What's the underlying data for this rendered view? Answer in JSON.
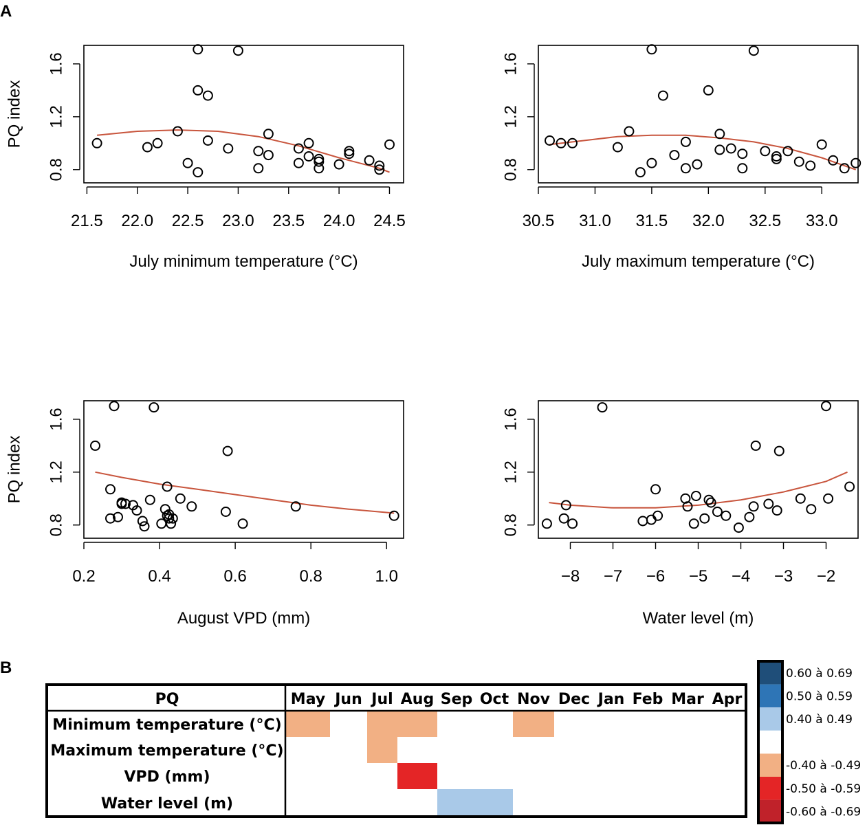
{
  "panel_labels": {
    "a": "A",
    "b": "B"
  },
  "colors": {
    "fit_line": "#c8553d",
    "light_red": "#f2b084",
    "red": "#e42526",
    "light_blue": "#a9c9e8"
  },
  "chart_data": [
    {
      "type": "scatter",
      "xlabel": "July minimum temperature (°C)",
      "ylabel": "PQ index",
      "xticks": [
        21.5,
        22.0,
        22.5,
        23.0,
        23.5,
        24.0,
        24.5
      ],
      "xtick_labels": [
        "21.5",
        "22.0",
        "22.5",
        "23.0",
        "23.5",
        "24.0",
        "24.5"
      ],
      "yticks": [
        0.8,
        1.2,
        1.6
      ],
      "ytick_labels": [
        "0.8",
        "1.2",
        "1.6"
      ],
      "xlim": [
        21.47,
        24.64
      ],
      "ylim": [
        0.7,
        1.74
      ],
      "x": [
        21.6,
        22.1,
        22.2,
        22.4,
        22.5,
        22.6,
        22.6,
        22.6,
        22.7,
        22.7,
        22.9,
        23.0,
        23.2,
        23.2,
        23.3,
        23.3,
        23.6,
        23.6,
        23.7,
        23.7,
        23.8,
        23.8,
        23.8,
        24.0,
        24.1,
        24.1,
        24.3,
        24.4,
        24.4,
        24.5
      ],
      "y": [
        1.0,
        0.97,
        1.0,
        1.09,
        0.85,
        0.78,
        1.4,
        1.71,
        1.36,
        1.02,
        0.96,
        1.7,
        0.81,
        0.94,
        1.07,
        0.91,
        0.85,
        0.96,
        0.9,
        1.0,
        0.88,
        0.86,
        0.81,
        0.84,
        0.94,
        0.92,
        0.87,
        0.83,
        0.8,
        0.99
      ],
      "fit": {
        "x": [
          21.6,
          22.0,
          22.4,
          22.8,
          23.2,
          23.6,
          24.0,
          24.4,
          24.5
        ],
        "y": [
          1.06,
          1.09,
          1.1,
          1.09,
          1.05,
          0.98,
          0.89,
          0.81,
          0.78
        ]
      }
    },
    {
      "type": "scatter",
      "xlabel": "July maximum temperature (°C)",
      "ylabel": "",
      "xticks": [
        30.5,
        31.0,
        31.5,
        32.0,
        32.5,
        33.0
      ],
      "xtick_labels": [
        "30.5",
        "31.0",
        "31.5",
        "32.0",
        "32.5",
        "33.0"
      ],
      "yticks": [
        0.8,
        1.2,
        1.6
      ],
      "ytick_labels": [
        "0.8",
        "1.2",
        "1.6"
      ],
      "xlim": [
        30.5,
        33.32
      ],
      "ylim": [
        0.7,
        1.74
      ],
      "x": [
        30.6,
        30.7,
        30.8,
        31.2,
        31.3,
        31.4,
        31.5,
        31.5,
        31.6,
        31.7,
        31.8,
        31.8,
        31.9,
        32.0,
        32.1,
        32.1,
        32.2,
        32.3,
        32.3,
        32.4,
        32.5,
        32.6,
        32.6,
        32.7,
        32.8,
        32.9,
        33.0,
        33.1,
        33.2,
        33.3
      ],
      "y": [
        1.02,
        1.0,
        1.0,
        0.97,
        1.09,
        0.78,
        1.71,
        0.85,
        1.36,
        0.91,
        1.01,
        0.81,
        0.84,
        1.4,
        1.07,
        0.95,
        0.96,
        0.92,
        0.81,
        1.7,
        0.94,
        0.9,
        0.88,
        0.94,
        0.86,
        0.83,
        0.99,
        0.87,
        0.81,
        0.85
      ],
      "fit": {
        "x": [
          30.6,
          30.9,
          31.2,
          31.5,
          31.8,
          32.1,
          32.4,
          32.7,
          33.0,
          33.3
        ],
        "y": [
          0.99,
          1.02,
          1.05,
          1.06,
          1.06,
          1.04,
          1.01,
          0.96,
          0.89,
          0.8
        ]
      }
    },
    {
      "type": "scatter",
      "xlabel": "August VPD (mm)",
      "ylabel": "PQ index",
      "xticks": [
        0.2,
        0.4,
        0.6,
        0.8,
        1.0
      ],
      "xtick_labels": [
        "0.2",
        "0.4",
        "0.6",
        "0.8",
        "1.0"
      ],
      "yticks": [
        0.8,
        1.2,
        1.6
      ],
      "ytick_labels": [
        "0.8",
        "1.2",
        "1.6"
      ],
      "xlim": [
        0.2,
        1.045
      ],
      "ylim": [
        0.7,
        1.74
      ],
      "x": [
        0.23,
        0.27,
        0.27,
        0.28,
        0.29,
        0.3,
        0.3,
        0.31,
        0.33,
        0.34,
        0.355,
        0.36,
        0.375,
        0.385,
        0.405,
        0.415,
        0.42,
        0.42,
        0.425,
        0.425,
        0.43,
        0.435,
        0.455,
        0.485,
        0.575,
        0.58,
        0.62,
        0.76,
        1.02
      ],
      "y": [
        1.4,
        0.85,
        1.07,
        1.7,
        0.86,
        0.96,
        0.97,
        0.96,
        0.95,
        0.91,
        0.83,
        0.79,
        0.99,
        1.69,
        0.81,
        0.92,
        0.87,
        1.09,
        0.85,
        0.88,
        0.81,
        0.85,
        1.0,
        0.94,
        0.9,
        1.36,
        0.81,
        0.94,
        0.87
      ],
      "fit": {
        "x": [
          0.23,
          0.3,
          0.4,
          0.5,
          0.6,
          0.7,
          0.8,
          0.9,
          1.02
        ],
        "y": [
          1.2,
          1.16,
          1.11,
          1.07,
          1.03,
          0.99,
          0.95,
          0.92,
          0.89
        ]
      }
    },
    {
      "type": "scatter",
      "xlabel": "Water level (m)",
      "ylabel": "",
      "xticks": [
        -8,
        -7,
        -6,
        -5,
        -4,
        -3,
        -2
      ],
      "xtick_labels": [
        "−8",
        "−7",
        "−6",
        "−5",
        "−4",
        "−3",
        "−2"
      ],
      "yticks": [
        0.8,
        1.2,
        1.6
      ],
      "ytick_labels": [
        "0.8",
        "1.2",
        "1.6"
      ],
      "xlim": [
        -8.75,
        -1.25
      ],
      "ylim": [
        0.7,
        1.74
      ],
      "x": [
        -8.55,
        -8.15,
        -8.1,
        -7.95,
        -7.25,
        -6.3,
        -6.1,
        -6.0,
        -5.95,
        -5.3,
        -5.25,
        -5.1,
        -5.05,
        -4.85,
        -4.75,
        -4.7,
        -4.55,
        -4.35,
        -4.05,
        -3.8,
        -3.7,
        -3.65,
        -3.35,
        -3.15,
        -3.1,
        -2.6,
        -2.35,
        -1.95,
        -2.0,
        -1.45
      ],
      "y": [
        0.81,
        0.85,
        0.95,
        0.81,
        1.69,
        0.83,
        0.84,
        1.07,
        0.87,
        1.0,
        0.94,
        0.81,
        1.02,
        0.85,
        0.99,
        0.97,
        0.9,
        0.87,
        0.78,
        0.86,
        0.94,
        1.4,
        0.96,
        0.91,
        1.36,
        1.0,
        0.92,
        1.0,
        1.7,
        1.09
      ],
      "fit": {
        "x": [
          -8.5,
          -8.0,
          -7.0,
          -6.0,
          -5.0,
          -4.0,
          -3.0,
          -2.0,
          -1.5
        ],
        "y": [
          0.97,
          0.95,
          0.93,
          0.93,
          0.95,
          0.99,
          1.05,
          1.13,
          1.2
        ]
      }
    },
    {
      "type": "heatmap",
      "corner_label": "PQ",
      "columns": [
        "May",
        "Jun",
        "Jul",
        "Aug",
        "Sep",
        "Oct",
        "Nov",
        "Dec",
        "Jan",
        "Feb",
        "Mar",
        "Apr"
      ],
      "rows": [
        {
          "label": "Minimum temperature (°C)",
          "cells": [
            {
              "from": "May",
              "to": "May",
              "class": "-0.40 à -0.49"
            },
            {
              "from": "Jul",
              "to": "Aug",
              "class": "-0.40 à -0.49"
            },
            {
              "from": "Nov",
              "to": "Nov",
              "class": "-0.40 à -0.49"
            }
          ]
        },
        {
          "label": "Maximum temperature (°C)",
          "cells": [
            {
              "from": "Jul",
              "to": "Jul",
              "class": "-0.40 à -0.49"
            }
          ]
        },
        {
          "label": "VPD (mm)",
          "cells": [
            {
              "from": "Aug",
              "to": "Aug",
              "class": "-0.50 à -0.59"
            }
          ]
        },
        {
          "label": "Water level (m)",
          "cells": [
            {
              "from": "Sep",
              "to": "Oct",
              "class": "0.40 à 0.49"
            }
          ]
        }
      ],
      "legend": [
        {
          "label": "0.60 à 0.69",
          "color": "#1f4e79"
        },
        {
          "label": "0.50 à 0.59",
          "color": "#2e75b6"
        },
        {
          "label": "0.40 à 0.49",
          "color": "#a9c9e8"
        },
        {
          "label": "",
          "color": "#ffffff"
        },
        {
          "label": "-0.40 à -0.49",
          "color": "#f2b084"
        },
        {
          "label": "-0.50 à -0.59",
          "color": "#e42526"
        },
        {
          "label": "-0.60 à -0.69",
          "color": "#c0222a"
        }
      ]
    }
  ]
}
